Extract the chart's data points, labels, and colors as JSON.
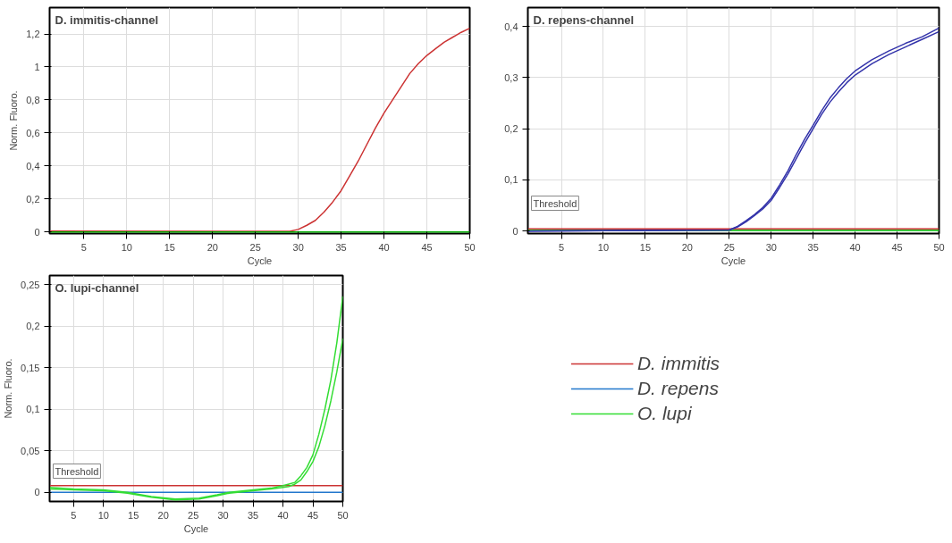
{
  "chart_data": [
    {
      "type": "line",
      "title": "D. immitis-channel",
      "xlabel": "Cycle",
      "ylabel": "Norm. Fluoro.",
      "xlim": [
        1,
        50
      ],
      "ylim": [
        -0.01,
        1.36
      ],
      "xticks": [
        5,
        10,
        15,
        20,
        25,
        30,
        35,
        40,
        45,
        50
      ],
      "yticks": [
        0,
        {
          "value": 0.2,
          "label": "0,2"
        },
        {
          "value": 0.4,
          "label": "0,4"
        },
        {
          "value": 0.6,
          "label": "0,6"
        },
        {
          "value": 0.8,
          "label": "0,8"
        },
        1,
        {
          "value": 1.2,
          "label": "1,2"
        }
      ],
      "grid": true,
      "legend": false,
      "series": [
        {
          "color": "#cc3333",
          "x": [
            1,
            29,
            30,
            31,
            32,
            33,
            34,
            35,
            36,
            37,
            38,
            39,
            40,
            41,
            42,
            43,
            44,
            45,
            46,
            47,
            48,
            49,
            50
          ],
          "values": [
            0.005,
            0.003,
            0.015,
            0.04,
            0.07,
            0.12,
            0.18,
            0.25,
            0.34,
            0.43,
            0.53,
            0.63,
            0.72,
            0.8,
            0.88,
            0.96,
            1.02,
            1.07,
            1.11,
            1.15,
            1.18,
            1.21,
            1.235
          ]
        },
        {
          "color": "#00aa00",
          "x": [
            1,
            50
          ],
          "values": [
            0,
            0
          ]
        }
      ]
    },
    {
      "type": "line",
      "title": "D. repens-channel",
      "xlabel": "Cycle",
      "annotations": [
        "Threshold"
      ],
      "xlim": [
        1,
        50
      ],
      "ylim": [
        -0.005,
        0.437
      ],
      "xticks": [
        5,
        10,
        15,
        20,
        25,
        30,
        35,
        40,
        45,
        50
      ],
      "yticks": [
        0,
        {
          "value": 0.1,
          "label": "0,1"
        },
        {
          "value": 0.2,
          "label": "0,2"
        },
        {
          "value": 0.3,
          "label": "0,3"
        },
        {
          "value": 0.4,
          "label": "0,4"
        }
      ],
      "grid": true,
      "legend": false,
      "series": [
        {
          "color": "#cc3333",
          "x": [
            1,
            50
          ],
          "values": [
            0.004,
            0.004
          ]
        },
        {
          "color": "#00bb00",
          "x": [
            1,
            50
          ],
          "values": [
            0.001,
            0.001
          ]
        },
        {
          "color": "#3333aa",
          "x": [
            1,
            25,
            26,
            27,
            28,
            29,
            30,
            31,
            32,
            33,
            34,
            35,
            36,
            37,
            38,
            39,
            40,
            42,
            44,
            46,
            48,
            50
          ],
          "values": [
            0,
            0.002,
            0.008,
            0.018,
            0.03,
            0.043,
            0.06,
            0.085,
            0.112,
            0.142,
            0.172,
            0.2,
            0.228,
            0.252,
            0.272,
            0.29,
            0.305,
            0.327,
            0.345,
            0.36,
            0.375,
            0.39
          ]
        },
        {
          "color": "#3333aa",
          "x": [
            1,
            25,
            26,
            27,
            28,
            29,
            30,
            31,
            32,
            33,
            34,
            35,
            36,
            37,
            38,
            39,
            40,
            42,
            44,
            46,
            48,
            50
          ],
          "values": [
            0,
            0.002,
            0.009,
            0.02,
            0.032,
            0.046,
            0.064,
            0.09,
            0.118,
            0.15,
            0.18,
            0.207,
            0.235,
            0.26,
            0.28,
            0.298,
            0.313,
            0.335,
            0.352,
            0.367,
            0.38,
            0.397
          ]
        }
      ]
    },
    {
      "type": "line",
      "title": "O. lupi-channel",
      "xlabel": "Cycle",
      "ylabel": "Norm. Fluoro.",
      "annotations": [
        "Threshold"
      ],
      "xlim": [
        1,
        50
      ],
      "ylim": [
        -0.011,
        0.261
      ],
      "xticks": [
        5,
        10,
        15,
        20,
        25,
        30,
        35,
        40,
        45,
        50
      ],
      "yticks": [
        0,
        {
          "value": 0.05,
          "label": "0,05"
        },
        {
          "value": 0.1,
          "label": "0,1"
        },
        {
          "value": 0.15,
          "label": "0,15"
        },
        {
          "value": 0.2,
          "label": "0,2"
        },
        {
          "value": 0.25,
          "label": "0,25"
        }
      ],
      "grid": true,
      "legend": "right",
      "series": [
        {
          "name": "D. immitis",
          "color": "#cc3333",
          "x": [
            1,
            50
          ],
          "values": [
            0.008,
            0.008
          ]
        },
        {
          "name": "D. repens",
          "color": "#2277cc",
          "x": [
            1,
            50
          ],
          "values": [
            0,
            0
          ]
        },
        {
          "name": "O. lupi",
          "color": "#33dd33",
          "x": [
            1,
            5,
            10,
            14,
            18,
            22,
            26,
            29,
            31,
            35,
            38,
            40,
            41,
            42,
            43,
            44,
            45,
            46,
            47,
            48,
            49,
            50
          ],
          "values": [
            0.006,
            0.004,
            0.003,
            0,
            -0.005,
            -0.008,
            -0.007,
            -0.003,
            0,
            0.003,
            0.005,
            0.008,
            0.01,
            0.012,
            0.02,
            0.03,
            0.045,
            0.07,
            0.1,
            0.135,
            0.18,
            0.236
          ]
        },
        {
          "color": "#33dd33",
          "x": [
            1,
            5,
            10,
            14,
            18,
            22,
            26,
            29,
            31,
            35,
            38,
            40,
            41,
            42,
            43,
            44,
            45,
            46,
            47,
            48,
            49,
            50
          ],
          "values": [
            0.004,
            0.003,
            0.002,
            -0.001,
            -0.006,
            -0.009,
            -0.008,
            -0.004,
            -0.001,
            0.002,
            0.004,
            0.006,
            0.007,
            0.01,
            0.015,
            0.025,
            0.037,
            0.055,
            0.08,
            0.11,
            0.145,
            0.185
          ]
        }
      ]
    }
  ]
}
